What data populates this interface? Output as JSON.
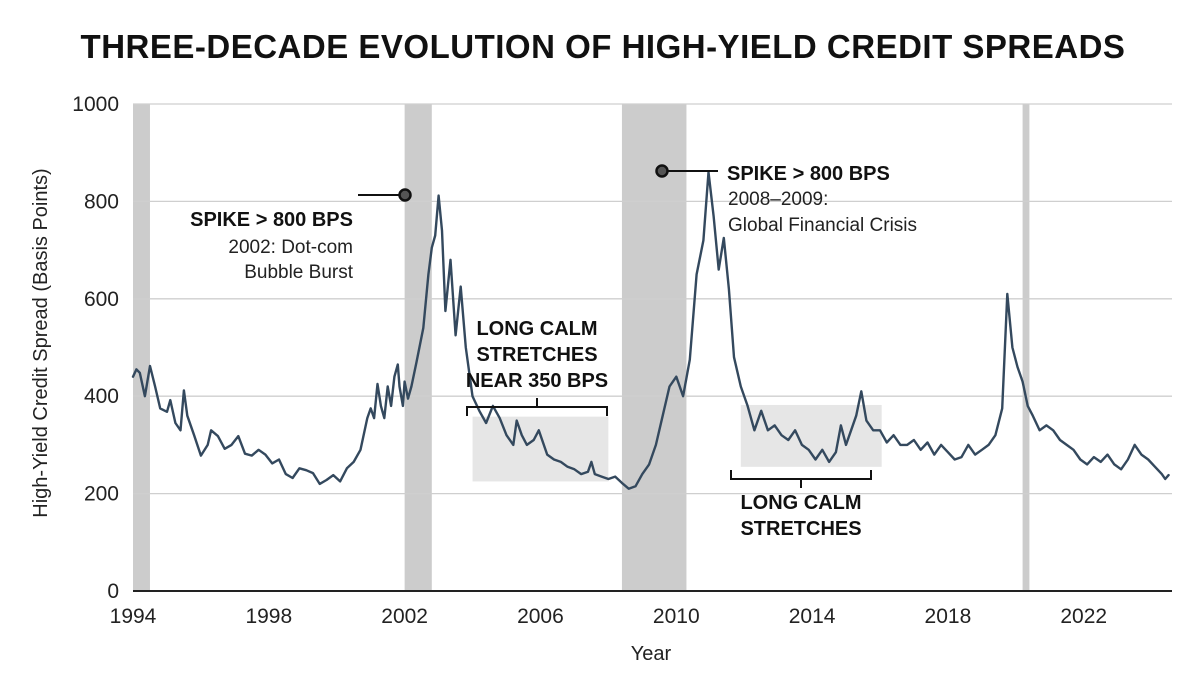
{
  "chart_data": {
    "type": "line",
    "title": "THREE-DECADE EVOLUTION OF HIGH-YIELD CREDIT SPREADS",
    "xlabel": "Year",
    "ylabel": "High-Yield Credit Spread (Basis Points)",
    "xlim": [
      1994,
      2024.6
    ],
    "ylim": [
      0,
      1000
    ],
    "xticks": [
      1994,
      1998,
      2002,
      2006,
      2010,
      2014,
      2018,
      2022
    ],
    "yticks": [
      0,
      200,
      400,
      600,
      800,
      1000
    ],
    "grid": "horizontal",
    "colors": {
      "line": "#34495e",
      "recession": "#cccccc",
      "calm_box": "#e6e6e6",
      "grid": "#cfcfcf"
    },
    "recession_shading": [
      [
        1994,
        1994.5
      ],
      [
        2002,
        2002.8
      ],
      [
        2008.4,
        2010.3
      ],
      [
        2020.2,
        2020.4
      ]
    ],
    "series": [
      {
        "values": [
          [
            1994.0,
            440
          ],
          [
            1994.1,
            455
          ],
          [
            1994.2,
            448
          ],
          [
            1994.35,
            400
          ],
          [
            1994.5,
            462
          ],
          [
            1994.65,
            420
          ],
          [
            1994.8,
            375
          ],
          [
            1995.0,
            368
          ],
          [
            1995.1,
            392
          ],
          [
            1995.25,
            345
          ],
          [
            1995.4,
            330
          ],
          [
            1995.5,
            412
          ],
          [
            1995.6,
            360
          ],
          [
            1995.8,
            320
          ],
          [
            1996.0,
            278
          ],
          [
            1996.2,
            300
          ],
          [
            1996.3,
            330
          ],
          [
            1996.5,
            318
          ],
          [
            1996.7,
            292
          ],
          [
            1996.9,
            300
          ],
          [
            1997.1,
            318
          ],
          [
            1997.3,
            282
          ],
          [
            1997.5,
            278
          ],
          [
            1997.7,
            290
          ],
          [
            1997.9,
            280
          ],
          [
            1998.1,
            262
          ],
          [
            1998.3,
            270
          ],
          [
            1998.5,
            240
          ],
          [
            1998.7,
            232
          ],
          [
            1998.9,
            252
          ],
          [
            1999.1,
            248
          ],
          [
            1999.3,
            242
          ],
          [
            1999.5,
            220
          ],
          [
            1999.7,
            228
          ],
          [
            1999.9,
            238
          ],
          [
            2000.1,
            225
          ],
          [
            2000.3,
            252
          ],
          [
            2000.5,
            265
          ],
          [
            2000.7,
            290
          ],
          [
            2000.9,
            355
          ],
          [
            2001.0,
            375
          ],
          [
            2001.1,
            355
          ],
          [
            2001.2,
            425
          ],
          [
            2001.3,
            380
          ],
          [
            2001.4,
            355
          ],
          [
            2001.5,
            420
          ],
          [
            2001.6,
            380
          ],
          [
            2001.7,
            440
          ],
          [
            2001.8,
            465
          ],
          [
            2001.85,
            420
          ],
          [
            2001.95,
            380
          ],
          [
            2002.0,
            430
          ],
          [
            2002.1,
            395
          ],
          [
            2002.2,
            420
          ],
          [
            2002.35,
            470
          ],
          [
            2002.55,
            540
          ],
          [
            2002.7,
            650
          ],
          [
            2002.8,
            705
          ],
          [
            2002.9,
            730
          ],
          [
            2003.0,
            812
          ],
          [
            2003.1,
            740
          ],
          [
            2003.2,
            575
          ],
          [
            2003.35,
            680
          ],
          [
            2003.5,
            525
          ],
          [
            2003.65,
            625
          ],
          [
            2003.8,
            500
          ],
          [
            2004.0,
            400
          ],
          [
            2004.2,
            370
          ],
          [
            2004.4,
            345
          ],
          [
            2004.6,
            380
          ],
          [
            2004.8,
            355
          ],
          [
            2005.0,
            320
          ],
          [
            2005.2,
            300
          ],
          [
            2005.3,
            350
          ],
          [
            2005.45,
            320
          ],
          [
            2005.6,
            300
          ],
          [
            2005.8,
            310
          ],
          [
            2005.95,
            330
          ],
          [
            2006.2,
            280
          ],
          [
            2006.4,
            270
          ],
          [
            2006.6,
            265
          ],
          [
            2006.8,
            255
          ],
          [
            2007.0,
            250
          ],
          [
            2007.2,
            240
          ],
          [
            2007.4,
            245
          ],
          [
            2007.5,
            265
          ],
          [
            2007.6,
            240
          ],
          [
            2007.8,
            235
          ],
          [
            2008.0,
            230
          ],
          [
            2008.2,
            235
          ],
          [
            2008.4,
            222
          ],
          [
            2008.6,
            210
          ],
          [
            2008.8,
            215
          ],
          [
            2009.0,
            240
          ],
          [
            2009.2,
            260
          ],
          [
            2009.4,
            300
          ],
          [
            2009.6,
            360
          ],
          [
            2009.8,
            420
          ],
          [
            2010.0,
            440
          ],
          [
            2010.2,
            400
          ],
          [
            2010.4,
            475
          ],
          [
            2010.6,
            650
          ],
          [
            2010.8,
            720
          ],
          [
            2010.95,
            860
          ],
          [
            2011.1,
            770
          ],
          [
            2011.25,
            660
          ],
          [
            2011.4,
            725
          ],
          [
            2011.55,
            620
          ],
          [
            2011.7,
            480
          ],
          [
            2011.9,
            420
          ],
          [
            2012.1,
            380
          ],
          [
            2012.3,
            330
          ],
          [
            2012.5,
            370
          ],
          [
            2012.7,
            330
          ],
          [
            2012.9,
            340
          ],
          [
            2013.1,
            320
          ],
          [
            2013.3,
            310
          ],
          [
            2013.5,
            330
          ],
          [
            2013.7,
            300
          ],
          [
            2013.9,
            290
          ],
          [
            2014.1,
            270
          ],
          [
            2014.3,
            290
          ],
          [
            2014.5,
            265
          ],
          [
            2014.7,
            285
          ],
          [
            2014.85,
            340
          ],
          [
            2015.0,
            300
          ],
          [
            2015.15,
            330
          ],
          [
            2015.3,
            360
          ],
          [
            2015.45,
            410
          ],
          [
            2015.6,
            350
          ],
          [
            2015.8,
            330
          ],
          [
            2016.0,
            330
          ],
          [
            2016.2,
            305
          ],
          [
            2016.4,
            320
          ],
          [
            2016.6,
            300
          ],
          [
            2016.8,
            300
          ],
          [
            2017.0,
            310
          ],
          [
            2017.2,
            290
          ],
          [
            2017.4,
            305
          ],
          [
            2017.6,
            280
          ],
          [
            2017.8,
            300
          ],
          [
            2018.0,
            285
          ],
          [
            2018.2,
            270
          ],
          [
            2018.4,
            275
          ],
          [
            2018.6,
            300
          ],
          [
            2018.8,
            280
          ],
          [
            2019.0,
            290
          ],
          [
            2019.2,
            300
          ],
          [
            2019.4,
            320
          ],
          [
            2019.6,
            375
          ],
          [
            2019.75,
            610
          ],
          [
            2019.9,
            500
          ],
          [
            2020.05,
            460
          ],
          [
            2020.2,
            430
          ],
          [
            2020.35,
            380
          ],
          [
            2020.5,
            360
          ],
          [
            2020.7,
            330
          ],
          [
            2020.9,
            340
          ],
          [
            2021.1,
            330
          ],
          [
            2021.3,
            310
          ],
          [
            2021.5,
            300
          ],
          [
            2021.7,
            290
          ],
          [
            2021.9,
            270
          ],
          [
            2022.1,
            260
          ],
          [
            2022.3,
            275
          ],
          [
            2022.5,
            265
          ],
          [
            2022.7,
            280
          ],
          [
            2022.9,
            260
          ],
          [
            2023.1,
            250
          ],
          [
            2023.3,
            270
          ],
          [
            2023.5,
            300
          ],
          [
            2023.7,
            280
          ],
          [
            2023.9,
            270
          ],
          [
            2024.1,
            255
          ],
          [
            2024.3,
            240
          ],
          [
            2024.4,
            230
          ],
          [
            2024.5,
            238
          ]
        ]
      }
    ],
    "annotations": [
      {
        "title": "SPIKE > 800 BPS",
        "lines": [
          "2002: Dot-com",
          "Bubble Burst"
        ]
      },
      {
        "title": "SPIKE > 800 BPS",
        "lines": [
          "2008–2009:",
          "Global Financial Crisis"
        ]
      },
      {
        "title": "",
        "lines": [
          "LONG CALM",
          "STRETCHES",
          "NEAR 350 BPS"
        ]
      },
      {
        "title": "",
        "lines": [
          "LONG CALM",
          "STRETCHES"
        ]
      }
    ]
  }
}
